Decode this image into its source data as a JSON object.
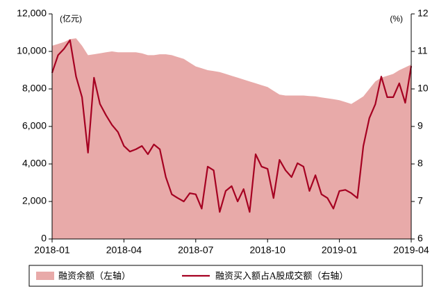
{
  "chart_data": {
    "type": "area-line",
    "y_label": "(亿元)",
    "y2_label": "(%)",
    "categories": [
      "2018-01",
      null,
      null,
      null,
      null,
      null,
      null,
      null,
      null,
      null,
      null,
      null,
      "2018-04",
      null,
      null,
      null,
      null,
      null,
      null,
      null,
      null,
      null,
      null,
      null,
      "2018-07",
      null,
      null,
      null,
      null,
      null,
      null,
      null,
      null,
      null,
      null,
      null,
      "2018-10",
      null,
      null,
      null,
      null,
      null,
      null,
      null,
      null,
      null,
      null,
      null,
      "2019-01",
      null,
      null,
      null,
      null,
      null,
      null,
      null,
      null,
      null,
      null,
      null,
      "2019-04"
    ],
    "series": [
      {
        "name": "融资余额（左轴）",
        "type": "area",
        "color": "#e8aaa9",
        "axis": "y",
        "values": [
          10300,
          10400,
          10500,
          10650,
          10700,
          10300,
          9800,
          9850,
          9900,
          9950,
          10000,
          9950,
          9950,
          9950,
          9950,
          9900,
          9800,
          9800,
          9850,
          9850,
          9800,
          9700,
          9600,
          9400,
          9200,
          9100,
          9000,
          8950,
          8900,
          8800,
          8700,
          8600,
          8500,
          8400,
          8300,
          8200,
          8100,
          7900,
          7700,
          7650,
          7650,
          7650,
          7650,
          7620,
          7600,
          7550,
          7500,
          7450,
          7400,
          7300,
          7200,
          7400,
          7600,
          8000,
          8400,
          8600,
          8700,
          8800,
          9000,
          9150,
          9300
        ]
      },
      {
        "name": "融资买入额占A股成交额（右轴）",
        "type": "line",
        "color": "#a50021",
        "axis": "y2",
        "values": [
          10.43,
          10.9,
          11.07,
          11.3,
          10.33,
          9.78,
          8.3,
          10.3,
          9.6,
          9.3,
          9.04,
          8.85,
          8.48,
          8.33,
          8.39,
          8.48,
          8.26,
          8.52,
          8.39,
          7.65,
          7.19,
          7.09,
          7.0,
          7.22,
          7.19,
          6.81,
          7.93,
          7.83,
          6.72,
          7.28,
          7.41,
          7.0,
          7.33,
          6.72,
          8.26,
          7.93,
          7.87,
          7.09,
          8.11,
          7.83,
          7.65,
          8.02,
          7.93,
          7.28,
          7.7,
          7.19,
          7.09,
          6.81,
          7.28,
          7.31,
          7.22,
          7.09,
          8.48,
          9.22,
          9.59,
          10.33,
          9.78,
          9.78,
          10.15,
          9.63,
          10.61
        ]
      }
    ],
    "ylim": [
      0,
      12000
    ],
    "yticks": [
      0,
      {
        "value": 2000,
        "label": "2,000"
      },
      {
        "value": 4000,
        "label": "4,000"
      },
      {
        "value": 6000,
        "label": "6,000"
      },
      {
        "value": 8000,
        "label": "8,000"
      },
      {
        "value": 10000,
        "label": "10,000"
      },
      {
        "value": 12000,
        "label": "12,000"
      }
    ],
    "y2lim": [
      6,
      12
    ],
    "y2ticks": [
      6,
      7,
      8,
      9,
      10,
      11,
      12
    ],
    "legend": "bottom"
  }
}
